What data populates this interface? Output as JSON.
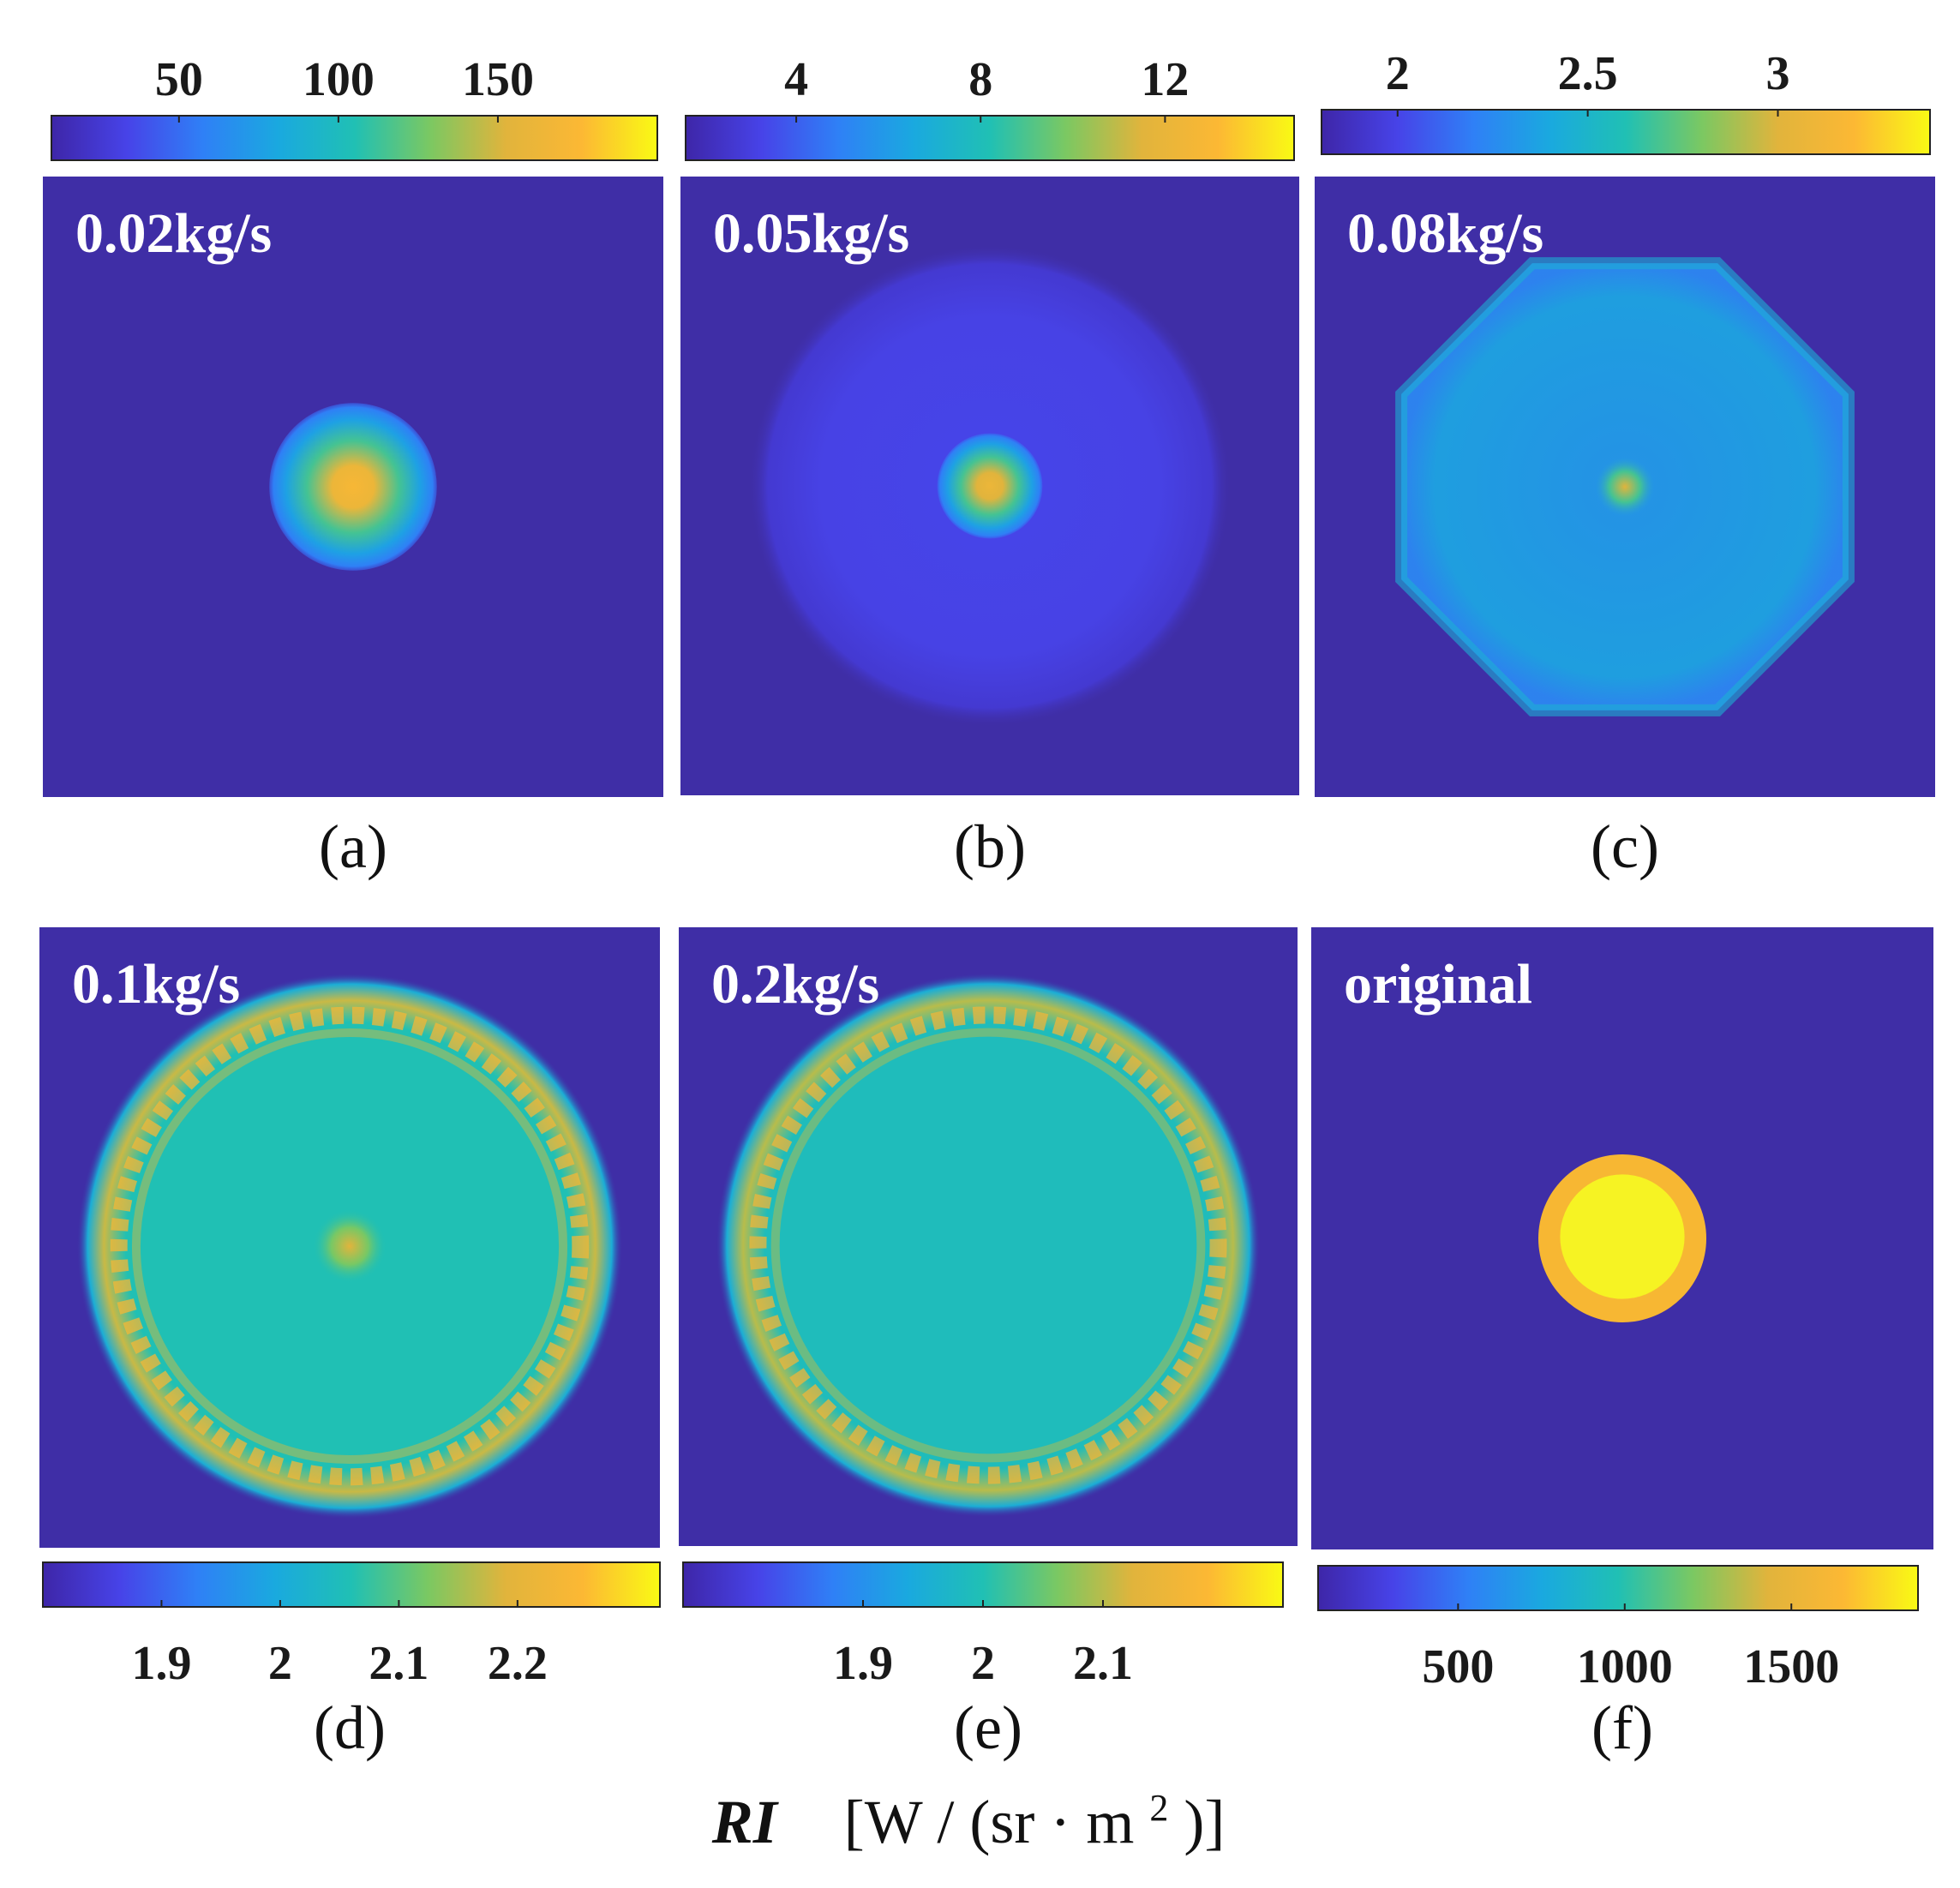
{
  "colors": {
    "background": "#3f2ea6",
    "parula": [
      "#3e26a8",
      "#4743e8",
      "#2f80f6",
      "#1aa9df",
      "#20c0b4",
      "#7bc862",
      "#e1b43c",
      "#fcb834",
      "#f9fa14"
    ],
    "original_ring": "#f7b733",
    "original_core": "#f6f323"
  },
  "axis_title": {
    "symbol": "RI",
    "units_open": "[W / (sr · m",
    "units_exp": "2",
    "units_close": ")]"
  },
  "chart_data": [
    {
      "type": "heatmap",
      "id": "a",
      "caption": "(a)",
      "label": "0.02kg/s",
      "colorbar": {
        "position": "top",
        "ticks": [
          "50",
          "100",
          "150"
        ],
        "tick_values": [
          50,
          100,
          150
        ],
        "range": [
          10,
          200
        ]
      },
      "pattern": {
        "kind": "spot",
        "spot_radius": 0.27,
        "ring_radius": 0,
        "ring_level": 0,
        "fill_level": 0,
        "peak_level": 0.85
      }
    },
    {
      "type": "heatmap",
      "id": "b",
      "caption": "(b)",
      "label": "0.05kg/s",
      "colorbar": {
        "position": "top",
        "ticks": [
          "4",
          "8",
          "12"
        ],
        "tick_values": [
          4,
          8,
          12
        ],
        "range": [
          1.6,
          14.8
        ]
      },
      "pattern": {
        "kind": "halo",
        "spot_radius": 0.17,
        "ring_radius": 0.78,
        "ring_level": 0.12,
        "fill_level": 0.08,
        "peak_level": 0.8
      }
    },
    {
      "type": "heatmap",
      "id": "c",
      "caption": "(c)",
      "label": "0.08kg/s",
      "colorbar": {
        "position": "top",
        "ticks": [
          "2",
          "2.5",
          "3"
        ],
        "tick_values": [
          2,
          2.5,
          3
        ],
        "range": [
          1.8,
          3.4
        ]
      },
      "pattern": {
        "kind": "octagon",
        "spot_radius": 0.1,
        "ring_radius": 0.78,
        "ring_level": 0.36,
        "fill_level": 0.32,
        "peak_level": 0.75
      }
    },
    {
      "type": "heatmap",
      "id": "d",
      "caption": "(d)",
      "label": "0.1kg/s",
      "colorbar": {
        "position": "bottom",
        "ticks": [
          "1.9",
          "2",
          "2.1",
          "2.2"
        ],
        "tick_values": [
          1.9,
          2.0,
          2.1,
          2.2
        ],
        "range": [
          1.8,
          2.32
        ]
      },
      "pattern": {
        "kind": "ring",
        "spot_radius": 0.12,
        "ring_radius": 0.8,
        "ring_level": 0.72,
        "fill_level": 0.5,
        "peak_level": 0.75
      }
    },
    {
      "type": "heatmap",
      "id": "e",
      "caption": "(e)",
      "label": "0.2kg/s",
      "colorbar": {
        "position": "bottom",
        "ticks": [
          "1.9",
          "2",
          "2.1"
        ],
        "tick_values": [
          1.9,
          2.0,
          2.1
        ],
        "range": [
          1.75,
          2.25
        ]
      },
      "pattern": {
        "kind": "ring",
        "spot_radius": 0,
        "ring_radius": 0.8,
        "ring_level": 0.7,
        "fill_level": 0.48,
        "peak_level": 0
      }
    },
    {
      "type": "heatmap",
      "id": "f",
      "caption": "(f)",
      "label": "original",
      "colorbar": {
        "position": "bottom",
        "ticks": [
          "500",
          "1000",
          "1500"
        ],
        "tick_values": [
          500,
          1000,
          1500
        ],
        "range": [
          80,
          1880
        ]
      },
      "pattern": {
        "kind": "disk",
        "spot_radius": 0.27,
        "ring_radius": 0.2,
        "ring_level": 0.85,
        "fill_level": 0,
        "peak_level": 0.98
      }
    }
  ]
}
